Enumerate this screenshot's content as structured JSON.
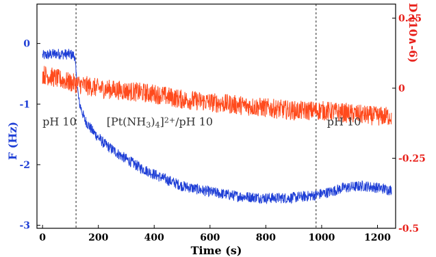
{
  "chart_data": {
    "type": "line",
    "xlabel": "Time (s)",
    "ylabel_left": "F (Hz)",
    "ylabel_right": "D (10^-6)",
    "ylabel_right_display": "D (10∧-6)",
    "xlim": [
      -20,
      1265
    ],
    "ylim_left": [
      -3.05,
      0.65
    ],
    "ylim_right": [
      -0.5,
      0.3
    ],
    "x_ticks": [
      0,
      200,
      400,
      600,
      800,
      1000,
      1200
    ],
    "y_left_ticks": [
      0,
      -1,
      -2,
      -3
    ],
    "y_right_ticks": [
      0.25,
      0,
      -0.25,
      -0.5
    ],
    "y_right_tick_labels": [
      "0.25",
      "0",
      "-0.25",
      "-0.5"
    ],
    "colors": {
      "F": "#1f3fd6",
      "D": "#ff4a1c",
      "left_axis": "#1f3fd6",
      "right_axis": "#e8201a"
    },
    "event_lines_x": [
      120,
      980
    ],
    "annotations": [
      {
        "text": "pH 10",
        "x": 0,
        "y": -1.35
      },
      {
        "text": "[Pt(NH3)4]2+/pH 10",
        "x": 420,
        "y": -1.35
      },
      {
        "text": "pH 10",
        "x": 1080,
        "y": -1.35
      }
    ],
    "series": [
      {
        "name": "F",
        "axis": "left",
        "x": [
          0,
          50,
          100,
          115,
          120,
          130,
          150,
          180,
          220,
          280,
          350,
          420,
          500,
          600,
          700,
          800,
          880,
          950,
          980,
          1030,
          1080,
          1150,
          1200,
          1250
        ],
        "y": [
          -0.2,
          -0.17,
          -0.18,
          -0.2,
          -0.5,
          -0.95,
          -1.25,
          -1.45,
          -1.65,
          -1.85,
          -2.05,
          -2.2,
          -2.35,
          -2.45,
          -2.52,
          -2.55,
          -2.55,
          -2.52,
          -2.5,
          -2.45,
          -2.38,
          -2.35,
          -2.38,
          -2.42
        ]
      },
      {
        "name": "D",
        "axis": "right",
        "x": [
          0,
          100,
          200,
          300,
          400,
          500,
          600,
          700,
          800,
          900,
          1000,
          1100,
          1200,
          1250
        ],
        "y": [
          0.05,
          0.02,
          0.0,
          -0.01,
          -0.02,
          -0.04,
          -0.05,
          -0.06,
          -0.07,
          -0.08,
          -0.08,
          -0.09,
          -0.1,
          -0.1
        ]
      }
    ]
  }
}
